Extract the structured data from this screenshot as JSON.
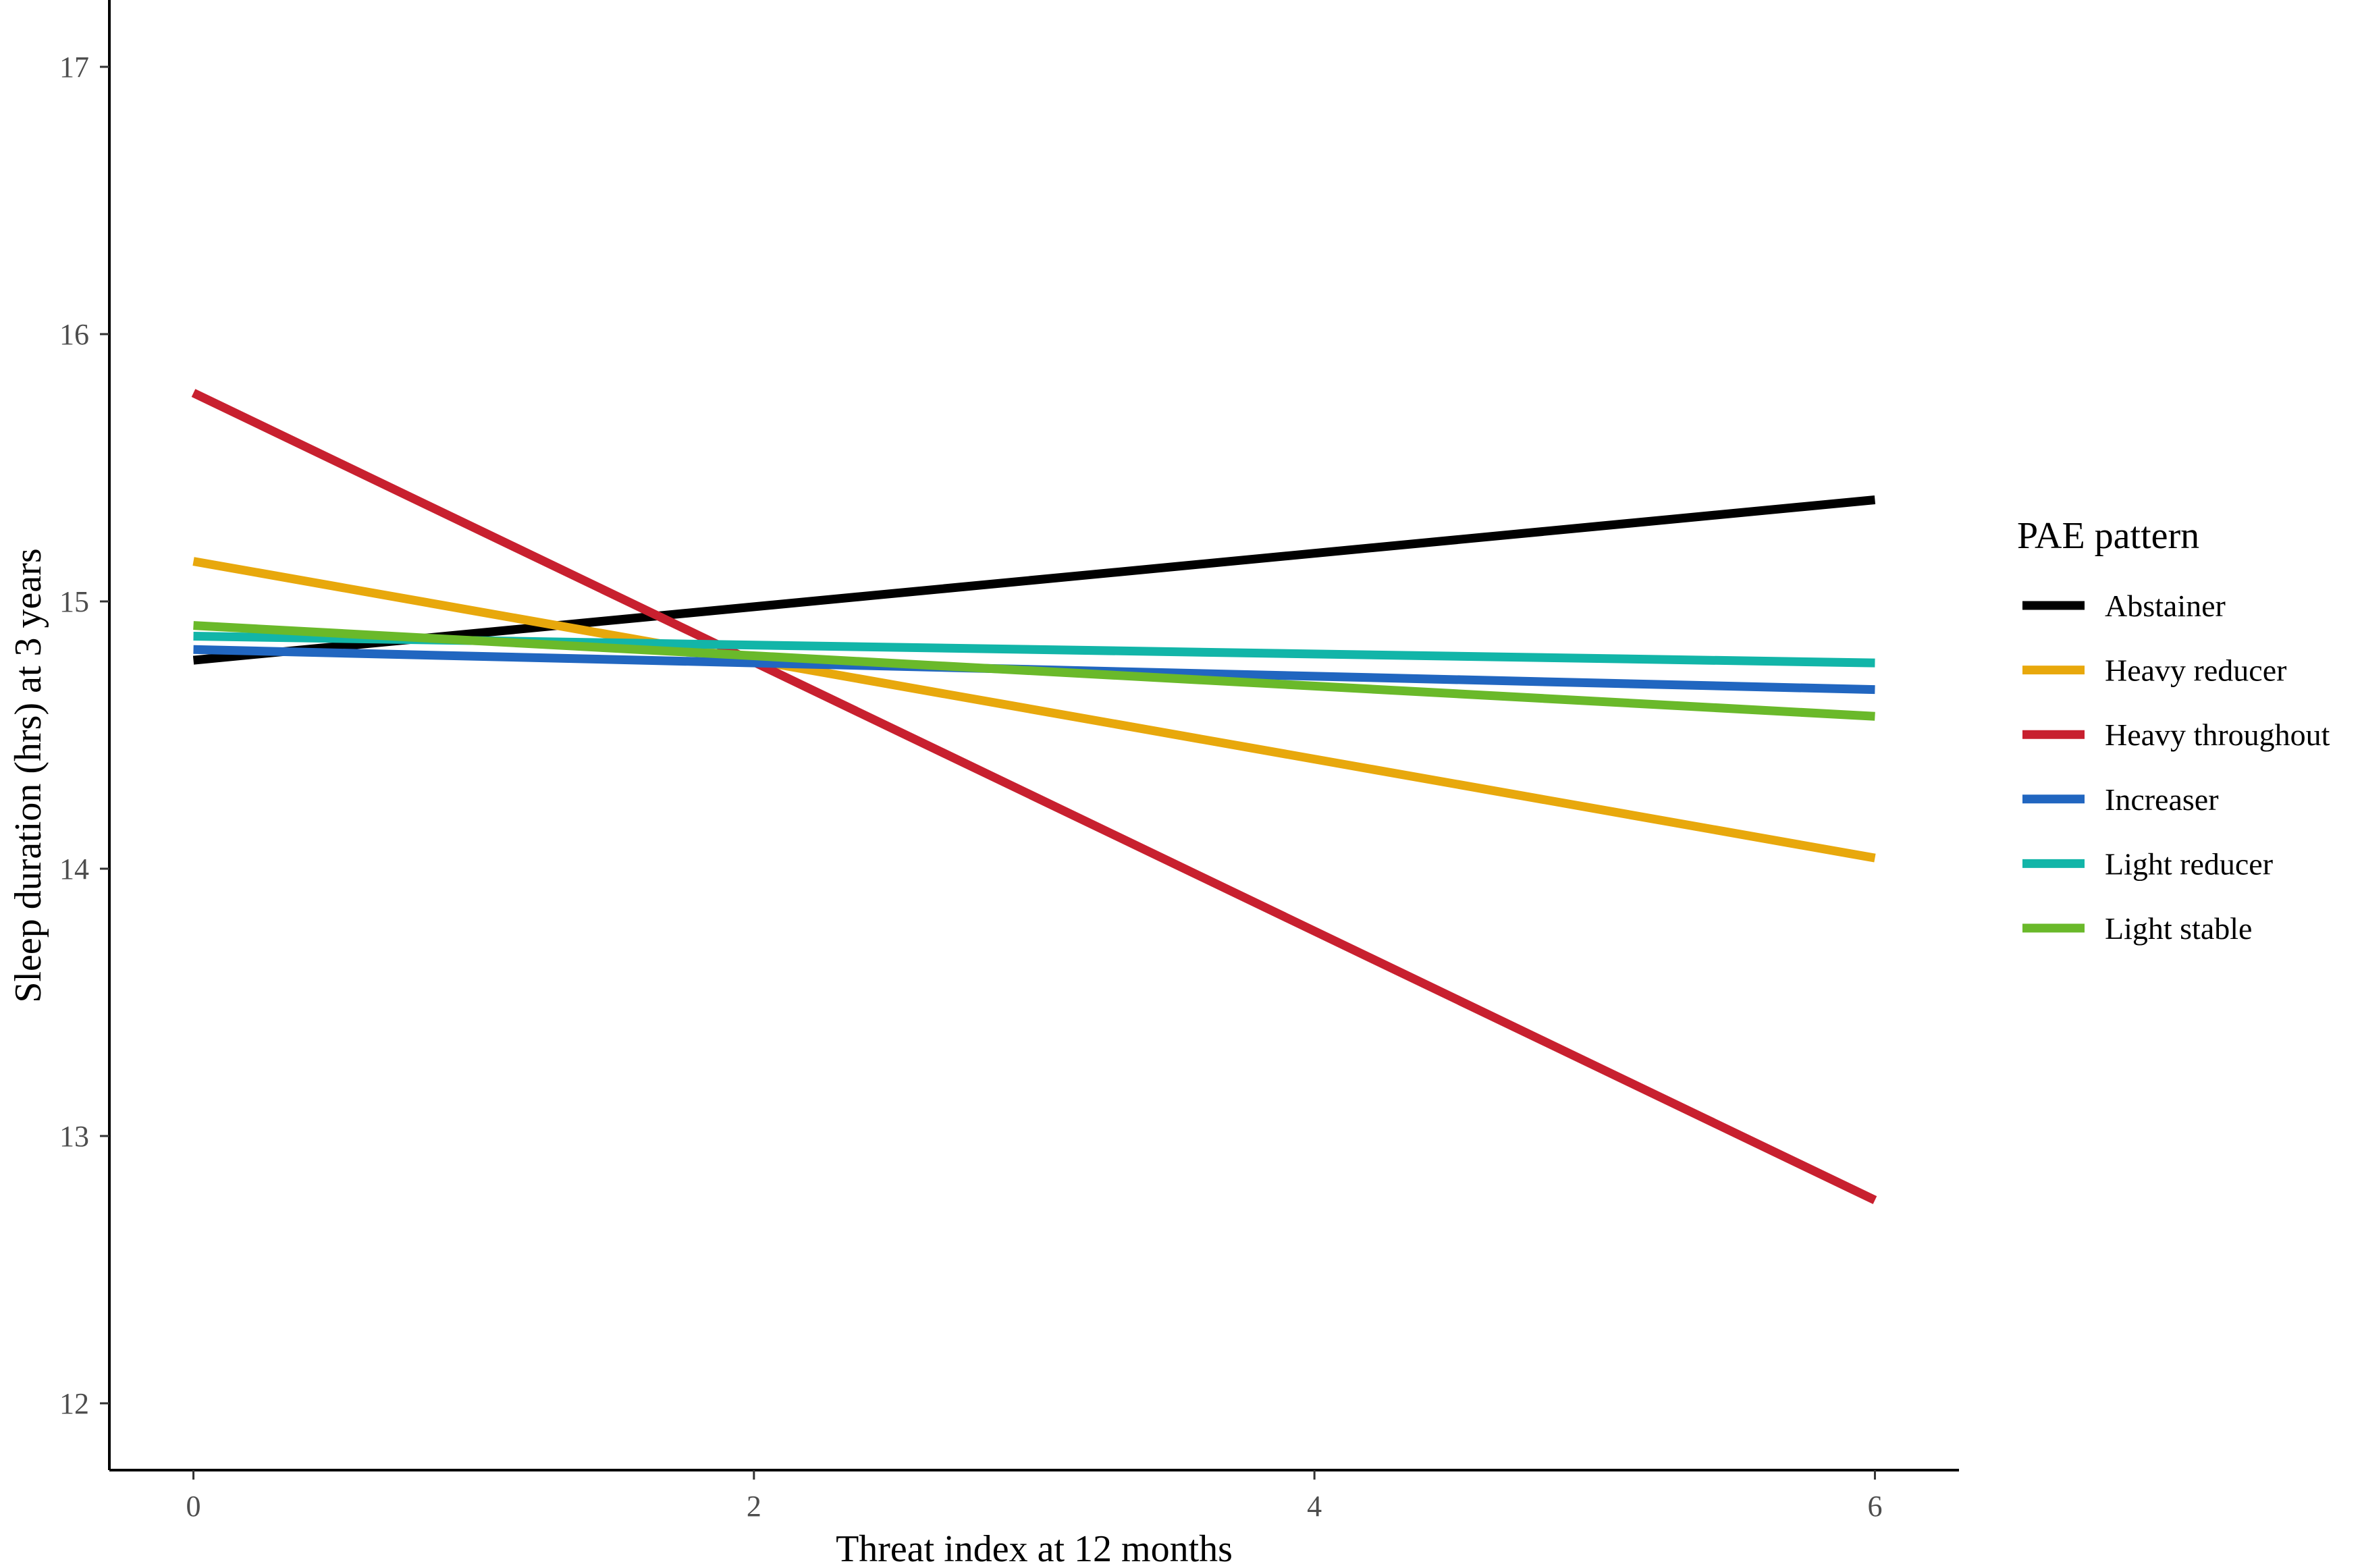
{
  "chart_data": {
    "type": "line",
    "xlabel": "Threat index at 12 months",
    "ylabel": "Sleep duration (hrs) at 3 years",
    "xlim": [
      -0.3,
      6.3
    ],
    "ylim": [
      11.75,
      17.25
    ],
    "xticks": [
      0,
      2,
      4,
      6
    ],
    "yticks": [
      12,
      13,
      14,
      15,
      16,
      17
    ],
    "grid": false,
    "legend": {
      "title": "PAE pattern",
      "placement": "right"
    },
    "series": [
      {
        "name": "Abstainer",
        "color": "#000000",
        "x": [
          0,
          6
        ],
        "y": [
          14.78,
          15.38
        ]
      },
      {
        "name": "Heavy reducer",
        "color": "#E8A80C",
        "x": [
          0,
          6
        ],
        "y": [
          15.15,
          14.04
        ]
      },
      {
        "name": "Heavy throughout",
        "color": "#C8202F",
        "x": [
          0,
          6
        ],
        "y": [
          15.78,
          12.76
        ]
      },
      {
        "name": "Increaser",
        "color": "#2166C0",
        "x": [
          0,
          6
        ],
        "y": [
          14.82,
          14.67
        ]
      },
      {
        "name": "Light reducer",
        "color": "#12B5A8",
        "x": [
          0,
          6
        ],
        "y": [
          14.87,
          14.77
        ]
      },
      {
        "name": "Light stable",
        "color": "#6AB92A",
        "x": [
          0,
          6
        ],
        "y": [
          14.91,
          14.57
        ]
      }
    ]
  }
}
